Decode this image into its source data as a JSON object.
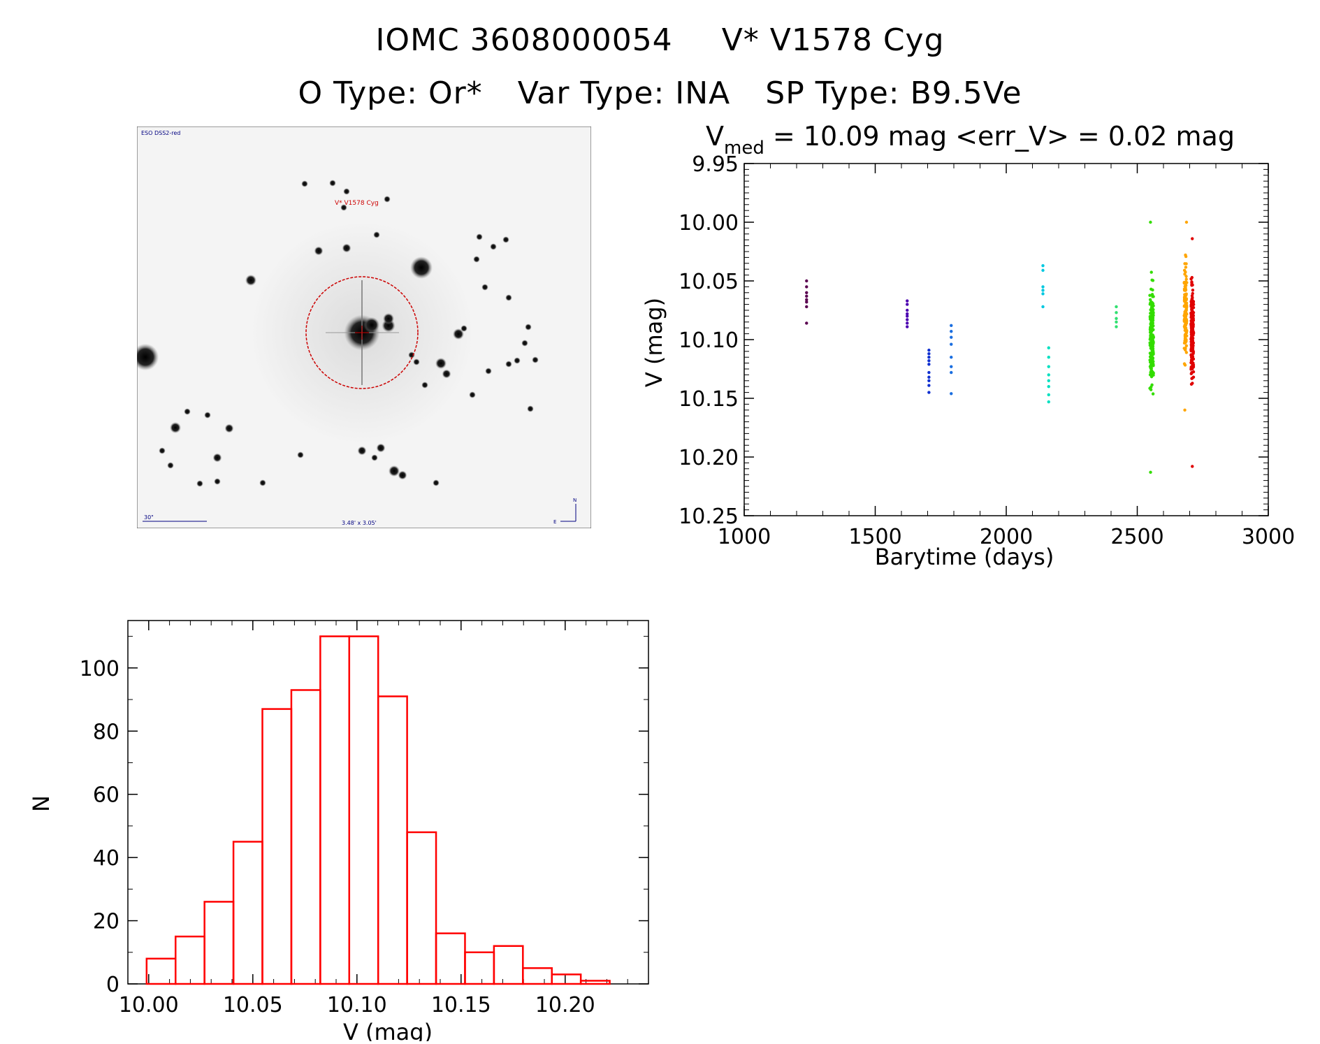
{
  "header": {
    "title_left": "IOMC 3608000054",
    "title_right": "V* V1578 Cyg",
    "otype": "O Type: Or*",
    "vartype": "Var Type: INA",
    "sptype": "SP Type: B9.5Ve"
  },
  "finder": {
    "survey_label": "ESO DSS2-red",
    "target_label": "V* V1578 Cyg",
    "scale_label": "30\"",
    "size_label": "3.48' x 3.05'",
    "north_label": "N",
    "east_label": "E",
    "colors": {
      "background": "#f4f4f4",
      "circle": "#cc0000",
      "label": "#cc0000",
      "annotation": "#000080"
    }
  },
  "chart_data": [
    {
      "type": "scatter",
      "title_prefix": "V",
      "title_subscript": "med",
      "title_rest": " = 10.09 mag <err_V> = 0.02 mag",
      "xlabel": "Barytime (days)",
      "ylabel": "V (mag)",
      "xlim": [
        1000,
        3000
      ],
      "ylim": [
        10.25,
        9.95
      ],
      "y_inverted": true,
      "xticks": [
        "1000",
        "1500",
        "2000",
        "2500",
        "3000"
      ],
      "yticks": [
        "9.95",
        "10.00",
        "10.05",
        "10.10",
        "10.15",
        "10.20",
        "10.25"
      ],
      "series": [
        {
          "color": "#5a0050",
          "x": [
            1238,
            1238,
            1238,
            1238,
            1238,
            1238,
            1238,
            1238
          ],
          "y": [
            10.05,
            10.055,
            10.06,
            10.063,
            10.066,
            10.068,
            10.072,
            10.086
          ]
        },
        {
          "color": "#4b00b0",
          "x": [
            1622,
            1622,
            1622,
            1622,
            1622,
            1622,
            1622,
            1622
          ],
          "y": [
            10.067,
            10.07,
            10.075,
            10.078,
            10.08,
            10.083,
            10.086,
            10.089
          ]
        },
        {
          "color": "#1030d0",
          "x": [
            1705,
            1705,
            1705,
            1705,
            1705,
            1705,
            1705,
            1705,
            1705,
            1705
          ],
          "y": [
            10.109,
            10.112,
            10.115,
            10.118,
            10.121,
            10.128,
            10.132,
            10.135,
            10.139,
            10.145
          ]
        },
        {
          "color": "#1a6ee0",
          "x": [
            1790,
            1790,
            1790,
            1790,
            1790,
            1790,
            1790,
            1790
          ],
          "y": [
            10.088,
            10.093,
            10.098,
            10.104,
            10.115,
            10.123,
            10.128,
            10.146
          ]
        },
        {
          "color": "#00c8e0",
          "x": [
            2140,
            2140,
            2140,
            2140,
            2140,
            2140
          ],
          "y": [
            10.037,
            10.041,
            10.055,
            10.058,
            10.061,
            10.072
          ]
        },
        {
          "color": "#00e0c0",
          "x": [
            2162,
            2162,
            2162,
            2162,
            2162,
            2162,
            2162,
            2162
          ],
          "y": [
            10.107,
            10.115,
            10.123,
            10.13,
            10.135,
            10.14,
            10.147,
            10.153
          ]
        },
        {
          "color": "#30e070",
          "x": [
            2420,
            2420,
            2420,
            2420,
            2420
          ],
          "y": [
            10.072,
            10.077,
            10.082,
            10.085,
            10.089
          ]
        },
        {
          "color": "#33dd00",
          "scatter_cluster": {
            "x_center": 2555,
            "x_spread": 14,
            "n": 220,
            "y_min": 10.0,
            "y_max": 10.213,
            "y_core": 10.1,
            "y_core_sd": 0.028
          }
        },
        {
          "color": "#ffa500",
          "scatter_cluster": {
            "x_center": 2684,
            "x_spread": 10,
            "n": 120,
            "y_min": 10.0,
            "y_max": 10.16,
            "y_core": 10.075,
            "y_core_sd": 0.03
          }
        },
        {
          "color": "#e00000",
          "scatter_cluster": {
            "x_center": 2710,
            "x_spread": 10,
            "n": 200,
            "y_min": 10.014,
            "y_max": 10.208,
            "y_core": 10.09,
            "y_core_sd": 0.028
          }
        }
      ]
    },
    {
      "type": "bar",
      "xlabel": "V (mag)",
      "ylabel": "N",
      "xlim": [
        9.99,
        10.24
      ],
      "ylim": [
        0,
        115
      ],
      "xticks": [
        "10.00",
        "10.05",
        "10.10",
        "10.15",
        "10.20"
      ],
      "yticks": [
        "0",
        "20",
        "40",
        "60",
        "80",
        "100"
      ],
      "bin_edges": [
        9.999,
        10.0129,
        10.0268,
        10.0407,
        10.0546,
        10.0685,
        10.0824,
        10.0963,
        10.1102,
        10.1241,
        10.138,
        10.1519,
        10.1658,
        10.1797,
        10.1936,
        10.2075,
        10.2214
      ],
      "values": [
        8,
        15,
        26,
        45,
        87,
        93,
        110,
        110,
        91,
        48,
        16,
        10,
        12,
        5,
        3,
        1
      ],
      "bar_color": "#ff0000"
    }
  ]
}
